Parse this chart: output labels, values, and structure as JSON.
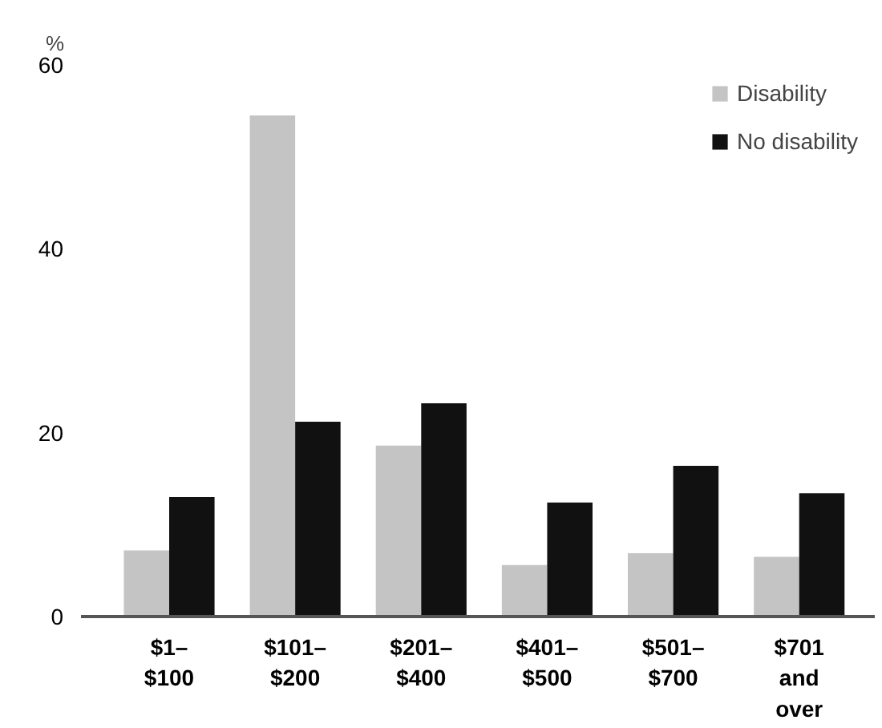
{
  "chart_data": {
    "type": "bar",
    "ylabel": "%",
    "categories": [
      "$1–\n$100",
      "$101–\n$200",
      "$201–\n$400",
      "$401–\n$500",
      "$501–\n$700",
      "$701\nand\nover"
    ],
    "series": [
      {
        "name": "Disability",
        "color": "#c4c4c4",
        "values": [
          7.2,
          54.5,
          18.6,
          5.6,
          6.9,
          6.5
        ]
      },
      {
        "name": "No disability",
        "color": "#111111",
        "values": [
          13.0,
          21.2,
          23.2,
          12.4,
          16.4,
          13.4
        ]
      }
    ],
    "ylim": [
      0,
      60
    ],
    "yticks": [
      0,
      20,
      40,
      60
    ],
    "grid": false,
    "legend": "top right"
  }
}
